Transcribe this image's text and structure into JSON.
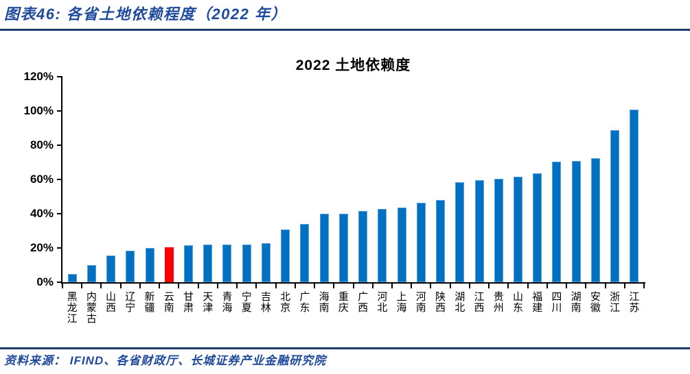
{
  "header": {
    "caption": "图表46:  各省土地依赖程度（2022 年）"
  },
  "footer": {
    "source": "资料来源：  IFIND、各省财政厅、长城证券产业金融研究院"
  },
  "colors": {
    "accent_text": "#1f4a9c",
    "rule": "#1c3a6e",
    "bar": "#0070c0",
    "bar_border": "#5aa2dd",
    "highlight": "#ff0000",
    "axis": "#000000"
  },
  "chart_data": {
    "type": "bar",
    "title": "2022 土地依赖度",
    "categories": [
      "黑龙江",
      "内蒙古",
      "山西",
      "辽宁",
      "新疆",
      "云南",
      "甘肃",
      "天津",
      "青海",
      "宁夏",
      "吉林",
      "北京",
      "广东",
      "海南",
      "重庆",
      "广西",
      "河北",
      "上海",
      "河南",
      "陕西",
      "湖北",
      "江西",
      "贵州",
      "山东",
      "福建",
      "四川",
      "湖南",
      "安徽",
      "浙江",
      "江苏"
    ],
    "values": [
      5,
      10,
      15.5,
      18.5,
      20,
      20.5,
      21.5,
      22,
      22,
      22,
      23,
      31,
      34,
      40,
      40,
      41.5,
      43,
      43.5,
      46.5,
      48,
      58.5,
      59.5,
      60.5,
      61.5,
      63.5,
      70.5,
      71,
      72.5,
      89,
      101
    ],
    "unit": "%",
    "highlight_index": 5,
    "highlight_category": "云南",
    "ylim": [
      0,
      120
    ],
    "ytick_values": [
      0,
      20,
      40,
      60,
      80,
      100,
      120
    ],
    "ytick_labels": [
      "0%",
      "20%",
      "40%",
      "60%",
      "80%",
      "100%",
      "120%"
    ],
    "xlabel": "",
    "ylabel": "",
    "grid": "off",
    "legend": "none"
  }
}
